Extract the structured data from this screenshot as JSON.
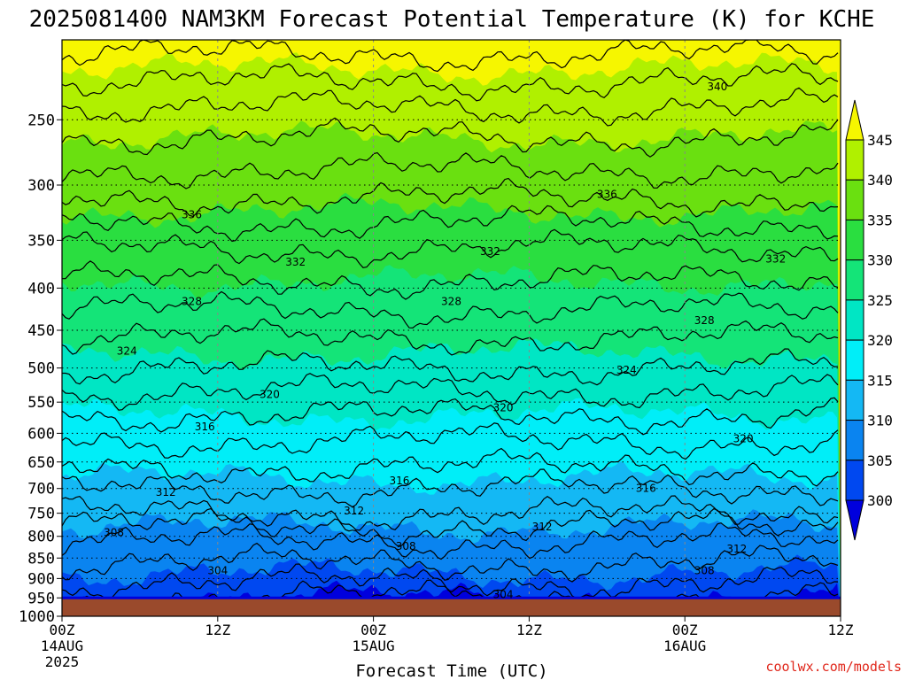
{
  "chart_data": {
    "type": "heatmap",
    "title": "2025081400 NAM3KM Forecast Potential Temperature (K) for KCHE",
    "xlabel": "Forecast Time (UTC)",
    "ylabel": "",
    "x_ticks": [
      {
        "hours": 0,
        "label": "00Z",
        "sublabel": "14AUG",
        "sublabel2": "2025"
      },
      {
        "hours": 12,
        "label": "12Z",
        "sublabel": "",
        "sublabel2": ""
      },
      {
        "hours": 24,
        "label": "00Z",
        "sublabel": "15AUG",
        "sublabel2": ""
      },
      {
        "hours": 36,
        "label": "12Z",
        "sublabel": "",
        "sublabel2": ""
      },
      {
        "hours": 48,
        "label": "00Z",
        "sublabel": "16AUG",
        "sublabel2": ""
      },
      {
        "hours": 60,
        "label": "12Z",
        "sublabel": "",
        "sublabel2": ""
      }
    ],
    "x_range_hours": [
      0,
      60
    ],
    "y_axis": "pressure (hPa), log scale, inverted",
    "y_range": [
      1000,
      200
    ],
    "y_ticks": [
      250,
      300,
      350,
      400,
      450,
      500,
      550,
      600,
      650,
      700,
      750,
      800,
      850,
      900,
      950,
      1000
    ],
    "surface_pressure": 950,
    "colorbar": {
      "levels": [
        300,
        305,
        310,
        315,
        320,
        325,
        330,
        335,
        340,
        345
      ],
      "colors": [
        "#0000dd",
        "#0048f0",
        "#0a84f0",
        "#14b8f4",
        "#00eef8",
        "#00e6c4",
        "#14e478",
        "#2ade40",
        "#6ae010",
        "#b0f000",
        "#f6f600"
      ]
    },
    "isotherm_profile": [
      {
        "p": 200,
        "theta": 347
      },
      {
        "p": 250,
        "theta": 341
      },
      {
        "p": 300,
        "theta": 337
      },
      {
        "p": 350,
        "theta": 332.5
      },
      {
        "p": 400,
        "theta": 329.5
      },
      {
        "p": 450,
        "theta": 326.5
      },
      {
        "p": 500,
        "theta": 324
      },
      {
        "p": 550,
        "theta": 321
      },
      {
        "p": 600,
        "theta": 318.5
      },
      {
        "p": 650,
        "theta": 316.5
      },
      {
        "p": 700,
        "theta": 314
      },
      {
        "p": 750,
        "theta": 312
      },
      {
        "p": 800,
        "theta": 308.5
      },
      {
        "p": 850,
        "theta": 306.5
      },
      {
        "p": 900,
        "theta": 304.5
      },
      {
        "p": 950,
        "theta": 302
      }
    ],
    "contour_labels": [
      {
        "text": "340",
        "hours": 50.5,
        "p": 228
      },
      {
        "text": "336",
        "hours": 10,
        "p": 326
      },
      {
        "text": "336",
        "hours": 42,
        "p": 308
      },
      {
        "text": "332",
        "hours": 18,
        "p": 372
      },
      {
        "text": "332",
        "hours": 33,
        "p": 361
      },
      {
        "text": "332",
        "hours": 55,
        "p": 369
      },
      {
        "text": "328",
        "hours": 10,
        "p": 415
      },
      {
        "text": "328",
        "hours": 30,
        "p": 415
      },
      {
        "text": "328",
        "hours": 49.5,
        "p": 438
      },
      {
        "text": "324",
        "hours": 5,
        "p": 477
      },
      {
        "text": "324",
        "hours": 43.5,
        "p": 503
      },
      {
        "text": "320",
        "hours": 16,
        "p": 538
      },
      {
        "text": "320",
        "hours": 34,
        "p": 559
      },
      {
        "text": "320",
        "hours": 52.5,
        "p": 609
      },
      {
        "text": "316",
        "hours": 11,
        "p": 589
      },
      {
        "text": "316",
        "hours": 26,
        "p": 685
      },
      {
        "text": "316",
        "hours": 45,
        "p": 700
      },
      {
        "text": "312",
        "hours": 8,
        "p": 707
      },
      {
        "text": "312",
        "hours": 22.5,
        "p": 745
      },
      {
        "text": "312",
        "hours": 37,
        "p": 779
      },
      {
        "text": "312",
        "hours": 52,
        "p": 829
      },
      {
        "text": "308",
        "hours": 4,
        "p": 792
      },
      {
        "text": "308",
        "hours": 26.5,
        "p": 823
      },
      {
        "text": "308",
        "hours": 49.5,
        "p": 880
      },
      {
        "text": "304",
        "hours": 12,
        "p": 880
      },
      {
        "text": "304",
        "hours": 34,
        "p": 941
      }
    ]
  },
  "credit": "coolwx.com/models",
  "colors": {
    "ground": "#9a4a2c",
    "credit": "#e0281c",
    "contour": "#000000"
  }
}
